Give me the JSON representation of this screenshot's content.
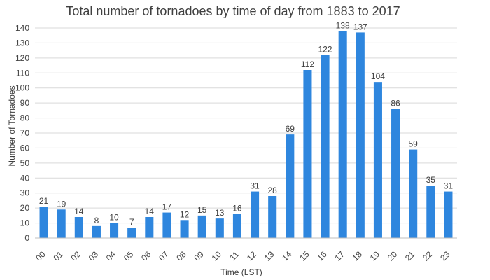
{
  "chart_data": {
    "type": "bar",
    "title": "Total number of tornadoes by time of day from 1883 to 2017",
    "xlabel": "Time (LST)",
    "ylabel": "Number of Tornadoes",
    "ylim": [
      0,
      140
    ],
    "ytick_step": 10,
    "grid": true,
    "bar_color": "#2e86de",
    "categories": [
      "00",
      "01",
      "02",
      "03",
      "04",
      "05",
      "06",
      "07",
      "08",
      "09",
      "10",
      "11",
      "12",
      "13",
      "14",
      "15",
      "16",
      "17",
      "18",
      "19",
      "20",
      "21",
      "22",
      "23"
    ],
    "values": [
      21,
      19,
      14,
      8,
      10,
      7,
      14,
      17,
      12,
      15,
      13,
      16,
      31,
      28,
      69,
      112,
      122,
      138,
      137,
      104,
      86,
      59,
      35,
      31
    ]
  }
}
